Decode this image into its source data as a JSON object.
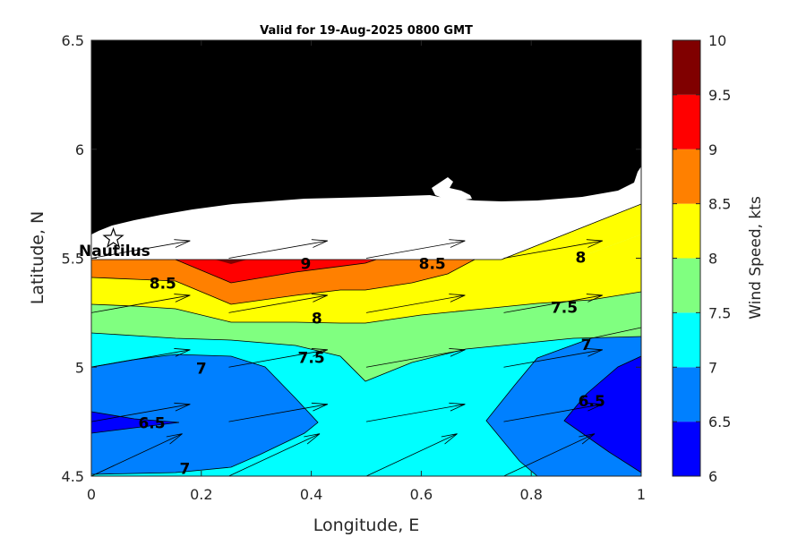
{
  "chart_data": {
    "type": "contour",
    "title": "Valid for 19-Aug-2025 0800 GMT",
    "xlabel": "Longitude, E",
    "ylabel": "Latitude, N",
    "xlim": [
      0,
      1
    ],
    "ylim": [
      4.5,
      6.5
    ],
    "x_ticks": [
      "0",
      "0.2",
      "0.4",
      "0.6",
      "0.8",
      "1"
    ],
    "y_ticks": [
      "4.5",
      "5",
      "5.5",
      "6",
      "6.5"
    ],
    "colorbar": {
      "label": "Wind Speed, kts",
      "min": 6,
      "max": 10,
      "ticks": [
        "6",
        "6.5",
        "7",
        "7.5",
        "8",
        "8.5",
        "9",
        "9.5",
        "10"
      ],
      "levels": [
        {
          "from": 6.0,
          "to": 6.5,
          "color": "#0000ff"
        },
        {
          "from": 6.5,
          "to": 7.0,
          "color": "#0080ff"
        },
        {
          "from": 7.0,
          "to": 7.5,
          "color": "#00ffff"
        },
        {
          "from": 7.5,
          "to": 8.0,
          "color": "#80ff80"
        },
        {
          "from": 8.0,
          "to": 8.5,
          "color": "#ffff00"
        },
        {
          "from": 8.5,
          "to": 9.0,
          "color": "#ff8000"
        },
        {
          "from": 9.0,
          "to": 9.5,
          "color": "#ff0000"
        },
        {
          "from": 9.5,
          "to": 10.0,
          "color": "#800000"
        }
      ]
    },
    "land_color": "#000000",
    "contour_labels": [
      {
        "text": "9",
        "lon": 0.39,
        "lat": 5.45
      },
      {
        "text": "8.5",
        "lon": 0.62,
        "lat": 5.45
      },
      {
        "text": "8",
        "lon": 0.89,
        "lat": 5.48
      },
      {
        "text": "8.5",
        "lon": 0.13,
        "lat": 5.36
      },
      {
        "text": "8",
        "lon": 0.41,
        "lat": 5.2
      },
      {
        "text": "7.5",
        "lon": 0.86,
        "lat": 5.25
      },
      {
        "text": "7.5",
        "lon": 0.4,
        "lat": 5.02
      },
      {
        "text": "7",
        "lon": 0.2,
        "lat": 4.97
      },
      {
        "text": "7",
        "lon": 0.9,
        "lat": 5.08
      },
      {
        "text": "6.5",
        "lon": 0.11,
        "lat": 4.72
      },
      {
        "text": "6.5",
        "lon": 0.91,
        "lat": 4.82
      },
      {
        "text": "7",
        "lon": 0.17,
        "lat": 4.51
      }
    ],
    "site": {
      "name": "Nautilus",
      "lon": 0.04,
      "lat": 5.59
    }
  }
}
